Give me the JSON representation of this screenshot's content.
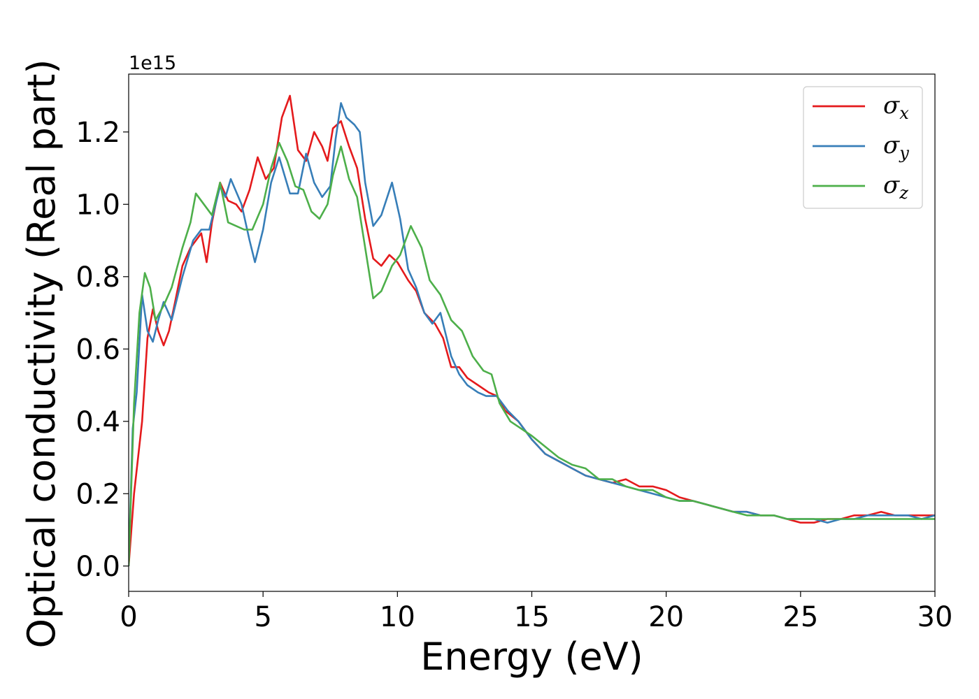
{
  "chart_data": {
    "type": "line",
    "xlabel": "Energy (eV)",
    "ylabel": "Optical conductivity (Real part)",
    "y_offset_label": "1e15",
    "y_scale": 1000000000000000.0,
    "xlim": [
      0,
      30
    ],
    "ylim": [
      -0.07,
      1.36
    ],
    "xticks": [
      0,
      5,
      10,
      15,
      20,
      25,
      30
    ],
    "yticks": [
      0.0,
      0.2,
      0.4,
      0.6,
      0.8,
      1.0,
      1.2
    ],
    "tick_labels_x": [
      "0",
      "5",
      "10",
      "15",
      "20",
      "25",
      "30"
    ],
    "tick_labels_y": [
      "0.0",
      "0.2",
      "0.4",
      "0.6",
      "0.8",
      "1.0",
      "1.2"
    ],
    "grid": false,
    "legend_position": "top-right",
    "series": [
      {
        "name": "σ",
        "subscript": "x",
        "color": "#e41a1c",
        "points": [
          [
            0,
            0.0
          ],
          [
            0.2,
            0.2
          ],
          [
            0.5,
            0.4
          ],
          [
            0.7,
            0.63
          ],
          [
            0.9,
            0.71
          ],
          [
            1.1,
            0.65
          ],
          [
            1.3,
            0.61
          ],
          [
            1.5,
            0.65
          ],
          [
            1.7,
            0.72
          ],
          [
            2.0,
            0.83
          ],
          [
            2.3,
            0.88
          ],
          [
            2.7,
            0.92
          ],
          [
            2.9,
            0.84
          ],
          [
            3.1,
            0.95
          ],
          [
            3.4,
            1.06
          ],
          [
            3.7,
            1.01
          ],
          [
            4.0,
            1.0
          ],
          [
            4.2,
            0.98
          ],
          [
            4.5,
            1.04
          ],
          [
            4.8,
            1.13
          ],
          [
            5.1,
            1.07
          ],
          [
            5.4,
            1.1
          ],
          [
            5.7,
            1.24
          ],
          [
            6.0,
            1.3
          ],
          [
            6.3,
            1.15
          ],
          [
            6.6,
            1.12
          ],
          [
            6.9,
            1.2
          ],
          [
            7.2,
            1.16
          ],
          [
            7.4,
            1.12
          ],
          [
            7.6,
            1.21
          ],
          [
            7.9,
            1.23
          ],
          [
            8.2,
            1.16
          ],
          [
            8.5,
            1.1
          ],
          [
            8.8,
            0.96
          ],
          [
            9.1,
            0.85
          ],
          [
            9.4,
            0.83
          ],
          [
            9.7,
            0.86
          ],
          [
            10.0,
            0.84
          ],
          [
            10.4,
            0.79
          ],
          [
            10.7,
            0.76
          ],
          [
            11.0,
            0.7
          ],
          [
            11.4,
            0.67
          ],
          [
            11.7,
            0.63
          ],
          [
            12.0,
            0.55
          ],
          [
            12.3,
            0.55
          ],
          [
            12.6,
            0.52
          ],
          [
            13.0,
            0.5
          ],
          [
            13.4,
            0.48
          ],
          [
            13.7,
            0.47
          ],
          [
            14.0,
            0.43
          ],
          [
            14.5,
            0.4
          ],
          [
            15.0,
            0.35
          ],
          [
            15.5,
            0.31
          ],
          [
            16.0,
            0.29
          ],
          [
            16.5,
            0.27
          ],
          [
            17.0,
            0.25
          ],
          [
            17.5,
            0.24
          ],
          [
            18.0,
            0.23
          ],
          [
            18.5,
            0.24
          ],
          [
            19.0,
            0.22
          ],
          [
            19.5,
            0.22
          ],
          [
            20.0,
            0.21
          ],
          [
            20.5,
            0.19
          ],
          [
            21.0,
            0.18
          ],
          [
            21.5,
            0.17
          ],
          [
            22.0,
            0.16
          ],
          [
            22.5,
            0.15
          ],
          [
            23.0,
            0.15
          ],
          [
            23.5,
            0.14
          ],
          [
            24.0,
            0.14
          ],
          [
            24.5,
            0.13
          ],
          [
            25.0,
            0.12
          ],
          [
            25.5,
            0.12
          ],
          [
            26.0,
            0.13
          ],
          [
            26.5,
            0.13
          ],
          [
            27.0,
            0.14
          ],
          [
            27.5,
            0.14
          ],
          [
            28.0,
            0.15
          ],
          [
            28.5,
            0.14
          ],
          [
            29.0,
            0.14
          ],
          [
            29.5,
            0.14
          ],
          [
            30.0,
            0.14
          ]
        ]
      },
      {
        "name": "σ",
        "subscript": "y",
        "color": "#377eb8",
        "points": [
          [
            0,
            0.0
          ],
          [
            0.15,
            0.38
          ],
          [
            0.3,
            0.48
          ],
          [
            0.5,
            0.75
          ],
          [
            0.7,
            0.65
          ],
          [
            0.9,
            0.62
          ],
          [
            1.1,
            0.68
          ],
          [
            1.3,
            0.73
          ],
          [
            1.6,
            0.68
          ],
          [
            2.0,
            0.8
          ],
          [
            2.4,
            0.9
          ],
          [
            2.7,
            0.93
          ],
          [
            3.0,
            0.93
          ],
          [
            3.4,
            1.05
          ],
          [
            3.6,
            1.02
          ],
          [
            3.8,
            1.07
          ],
          [
            4.2,
            1.0
          ],
          [
            4.5,
            0.9
          ],
          [
            4.7,
            0.84
          ],
          [
            5.0,
            0.93
          ],
          [
            5.3,
            1.06
          ],
          [
            5.6,
            1.13
          ],
          [
            6.0,
            1.03
          ],
          [
            6.3,
            1.03
          ],
          [
            6.6,
            1.14
          ],
          [
            6.9,
            1.06
          ],
          [
            7.2,
            1.02
          ],
          [
            7.5,
            1.05
          ],
          [
            7.7,
            1.18
          ],
          [
            7.9,
            1.28
          ],
          [
            8.1,
            1.24
          ],
          [
            8.4,
            1.22
          ],
          [
            8.6,
            1.2
          ],
          [
            8.8,
            1.06
          ],
          [
            9.1,
            0.94
          ],
          [
            9.4,
            0.97
          ],
          [
            9.8,
            1.06
          ],
          [
            10.1,
            0.96
          ],
          [
            10.4,
            0.82
          ],
          [
            10.7,
            0.77
          ],
          [
            11.0,
            0.7
          ],
          [
            11.3,
            0.67
          ],
          [
            11.6,
            0.7
          ],
          [
            12.0,
            0.58
          ],
          [
            12.3,
            0.53
          ],
          [
            12.6,
            0.5
          ],
          [
            13.0,
            0.48
          ],
          [
            13.3,
            0.47
          ],
          [
            13.7,
            0.47
          ],
          [
            14.1,
            0.43
          ],
          [
            14.5,
            0.4
          ],
          [
            15.0,
            0.35
          ],
          [
            15.5,
            0.31
          ],
          [
            16.0,
            0.29
          ],
          [
            16.5,
            0.27
          ],
          [
            17.0,
            0.25
          ],
          [
            17.5,
            0.24
          ],
          [
            18.0,
            0.23
          ],
          [
            18.5,
            0.22
          ],
          [
            19.0,
            0.21
          ],
          [
            19.5,
            0.2
          ],
          [
            20.0,
            0.19
          ],
          [
            20.5,
            0.18
          ],
          [
            21.0,
            0.18
          ],
          [
            21.5,
            0.17
          ],
          [
            22.0,
            0.16
          ],
          [
            22.5,
            0.15
          ],
          [
            23.0,
            0.15
          ],
          [
            23.5,
            0.14
          ],
          [
            24.0,
            0.14
          ],
          [
            24.5,
            0.13
          ],
          [
            25.0,
            0.13
          ],
          [
            25.5,
            0.13
          ],
          [
            26.0,
            0.12
          ],
          [
            26.5,
            0.13
          ],
          [
            27.0,
            0.13
          ],
          [
            27.5,
            0.14
          ],
          [
            28.0,
            0.14
          ],
          [
            28.5,
            0.14
          ],
          [
            29.0,
            0.14
          ],
          [
            29.5,
            0.13
          ],
          [
            30.0,
            0.14
          ]
        ]
      },
      {
        "name": "σ",
        "subscript": "z",
        "color": "#4daf4a",
        "points": [
          [
            0,
            0.0
          ],
          [
            0.2,
            0.45
          ],
          [
            0.4,
            0.7
          ],
          [
            0.6,
            0.81
          ],
          [
            0.8,
            0.77
          ],
          [
            1.0,
            0.68
          ],
          [
            1.3,
            0.72
          ],
          [
            1.6,
            0.77
          ],
          [
            2.0,
            0.88
          ],
          [
            2.3,
            0.95
          ],
          [
            2.5,
            1.03
          ],
          [
            2.8,
            1.0
          ],
          [
            3.1,
            0.97
          ],
          [
            3.4,
            1.06
          ],
          [
            3.7,
            0.95
          ],
          [
            4.0,
            0.94
          ],
          [
            4.3,
            0.93
          ],
          [
            4.6,
            0.93
          ],
          [
            5.0,
            1.0
          ],
          [
            5.3,
            1.1
          ],
          [
            5.6,
            1.17
          ],
          [
            5.9,
            1.12
          ],
          [
            6.2,
            1.05
          ],
          [
            6.5,
            1.04
          ],
          [
            6.8,
            0.98
          ],
          [
            7.1,
            0.96
          ],
          [
            7.4,
            1.0
          ],
          [
            7.6,
            1.08
          ],
          [
            7.9,
            1.16
          ],
          [
            8.2,
            1.07
          ],
          [
            8.5,
            1.02
          ],
          [
            8.8,
            0.88
          ],
          [
            9.1,
            0.74
          ],
          [
            9.4,
            0.76
          ],
          [
            9.8,
            0.83
          ],
          [
            10.1,
            0.86
          ],
          [
            10.5,
            0.94
          ],
          [
            10.9,
            0.88
          ],
          [
            11.2,
            0.79
          ],
          [
            11.6,
            0.75
          ],
          [
            12.0,
            0.68
          ],
          [
            12.4,
            0.65
          ],
          [
            12.8,
            0.58
          ],
          [
            13.2,
            0.54
          ],
          [
            13.5,
            0.53
          ],
          [
            13.8,
            0.45
          ],
          [
            14.2,
            0.4
          ],
          [
            14.6,
            0.38
          ],
          [
            15.0,
            0.36
          ],
          [
            15.5,
            0.33
          ],
          [
            16.0,
            0.3
          ],
          [
            16.5,
            0.28
          ],
          [
            17.0,
            0.27
          ],
          [
            17.5,
            0.24
          ],
          [
            18.0,
            0.24
          ],
          [
            18.5,
            0.22
          ],
          [
            19.0,
            0.21
          ],
          [
            19.5,
            0.21
          ],
          [
            20.0,
            0.19
          ],
          [
            20.5,
            0.18
          ],
          [
            21.0,
            0.18
          ],
          [
            21.5,
            0.17
          ],
          [
            22.0,
            0.16
          ],
          [
            22.5,
            0.15
          ],
          [
            23.0,
            0.14
          ],
          [
            23.5,
            0.14
          ],
          [
            24.0,
            0.14
          ],
          [
            24.5,
            0.13
          ],
          [
            25.0,
            0.13
          ],
          [
            25.5,
            0.13
          ],
          [
            26.0,
            0.13
          ],
          [
            26.5,
            0.13
          ],
          [
            27.0,
            0.13
          ],
          [
            27.5,
            0.13
          ],
          [
            28.0,
            0.13
          ],
          [
            28.5,
            0.13
          ],
          [
            29.0,
            0.13
          ],
          [
            29.5,
            0.13
          ],
          [
            30.0,
            0.13
          ]
        ]
      }
    ]
  }
}
